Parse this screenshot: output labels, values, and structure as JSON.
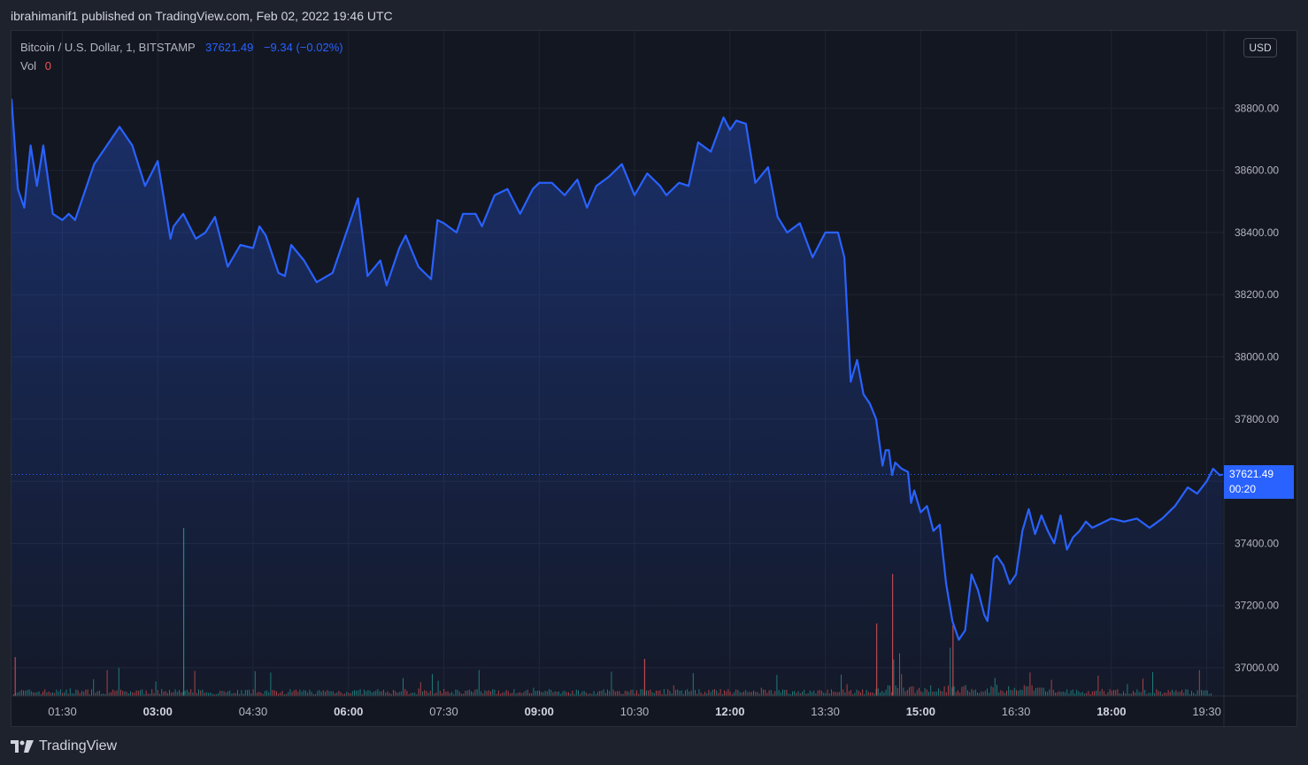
{
  "publish_line": "ibrahimanif1 published on TradingView.com, Feb 02, 2022 19:46 UTC",
  "legend": {
    "symbol": "Bitcoin / U.S. Dollar, 1, BITSTAMP",
    "price": "37621.49",
    "change": "−9.34 (−0.02%)",
    "vol_label": "Vol",
    "vol_value": "0"
  },
  "currency_button": "USD",
  "price_badge": {
    "price": "37621.49",
    "countdown": "00:20"
  },
  "footer_brand": "TradingView",
  "colors": {
    "line": "#2962ff",
    "up_volume": "#26a69a",
    "down_volume": "#ef5350",
    "background": "#131722"
  },
  "icons": {
    "logo": "tradingview-logo-icon"
  },
  "chart_data": {
    "type": "area",
    "ylim": [
      36900,
      39000
    ],
    "y_ticks": [
      37000,
      37200,
      37400,
      37600,
      37800,
      38000,
      38200,
      38400,
      38600,
      38800
    ],
    "y_tick_labels": [
      "37000.00",
      "37200.00",
      "37400.00",
      "37600.00",
      "37800.00",
      "38000.00",
      "38200.00",
      "38400.00",
      "38600.00",
      "38800.00"
    ],
    "x_range_hours": [
      0.7,
      19.77
    ],
    "x_ticks": [
      1.5,
      3,
      4.5,
      6,
      7.5,
      9,
      10.5,
      12,
      13.5,
      15,
      16.5,
      18,
      19.5
    ],
    "x_tick_labels": [
      "01:30",
      "03:00",
      "04:30",
      "06:00",
      "07:30",
      "09:00",
      "10:30",
      "12:00",
      "13:30",
      "15:00",
      "16:30",
      "18:00",
      "19:30"
    ],
    "x_tick_bold": [
      false,
      true,
      false,
      true,
      false,
      true,
      false,
      true,
      false,
      true,
      false,
      true,
      false
    ],
    "last_price": 37621.49,
    "x": [
      0.7,
      0.8,
      0.9,
      1.0,
      1.1,
      1.2,
      1.35,
      1.5,
      1.6,
      1.7,
      2.0,
      2.2,
      2.4,
      2.6,
      2.8,
      3.0,
      3.2,
      3.25,
      3.4,
      3.6,
      3.75,
      3.9,
      4.1,
      4.3,
      4.5,
      4.6,
      4.7,
      4.9,
      5.0,
      5.1,
      5.3,
      5.5,
      5.75,
      6.0,
      6.15,
      6.3,
      6.5,
      6.6,
      6.8,
      6.9,
      7.1,
      7.3,
      7.4,
      7.5,
      7.7,
      7.8,
      8.0,
      8.1,
      8.3,
      8.5,
      8.7,
      8.9,
      9.0,
      9.2,
      9.4,
      9.6,
      9.75,
      9.9,
      10.1,
      10.3,
      10.5,
      10.7,
      10.9,
      11.0,
      11.2,
      11.35,
      11.5,
      11.7,
      11.9,
      12.0,
      12.1,
      12.25,
      12.4,
      12.6,
      12.75,
      12.9,
      13.1,
      13.3,
      13.5,
      13.7,
      13.8,
      13.9,
      14.0,
      14.1,
      14.2,
      14.3,
      14.4,
      14.45,
      14.5,
      14.55,
      14.6,
      14.7,
      14.8,
      14.85,
      14.9,
      15.0,
      15.1,
      15.2,
      15.3,
      15.4,
      15.5,
      15.6,
      15.7,
      15.8,
      15.9,
      16.0,
      16.05,
      16.1,
      16.15,
      16.2,
      16.3,
      16.4,
      16.5,
      16.6,
      16.7,
      16.8,
      16.9,
      17.0,
      17.1,
      17.2,
      17.3,
      17.4,
      17.5,
      17.6,
      17.7,
      17.8,
      18.0,
      18.2,
      18.4,
      18.6,
      18.8,
      19.0,
      19.2,
      19.35,
      19.5,
      19.6,
      19.7,
      19.75
    ],
    "y": [
      38830,
      38540,
      38480,
      38680,
      38550,
      38680,
      38460,
      38440,
      38460,
      38440,
      38620,
      38680,
      38740,
      38680,
      38550,
      38630,
      38380,
      38420,
      38460,
      38380,
      38400,
      38450,
      38290,
      38360,
      38350,
      38420,
      38390,
      38270,
      38260,
      38360,
      38310,
      38240,
      38270,
      38420,
      38510,
      38260,
      38310,
      38230,
      38350,
      38390,
      38290,
      38250,
      38440,
      38430,
      38400,
      38460,
      38460,
      38420,
      38520,
      38540,
      38460,
      38540,
      38560,
      38560,
      38520,
      38570,
      38480,
      38550,
      38580,
      38620,
      38520,
      38590,
      38550,
      38520,
      38560,
      38550,
      38690,
      38660,
      38770,
      38730,
      38760,
      38750,
      38560,
      38610,
      38450,
      38400,
      38430,
      38320,
      38400,
      38400,
      38320,
      37920,
      37990,
      37880,
      37850,
      37800,
      37650,
      37700,
      37700,
      37620,
      37660,
      37640,
      37630,
      37530,
      37570,
      37500,
      37520,
      37440,
      37460,
      37270,
      37150,
      37090,
      37120,
      37300,
      37250,
      37170,
      37150,
      37240,
      37350,
      37360,
      37330,
      37270,
      37300,
      37440,
      37510,
      37430,
      37490,
      37440,
      37400,
      37490,
      37380,
      37420,
      37440,
      37470,
      37450,
      37460,
      37480,
      37470,
      37480,
      37450,
      37480,
      37520,
      37580,
      37560,
      37600,
      37640,
      37620,
      37621
    ],
    "volume_scale": 0.05
  }
}
